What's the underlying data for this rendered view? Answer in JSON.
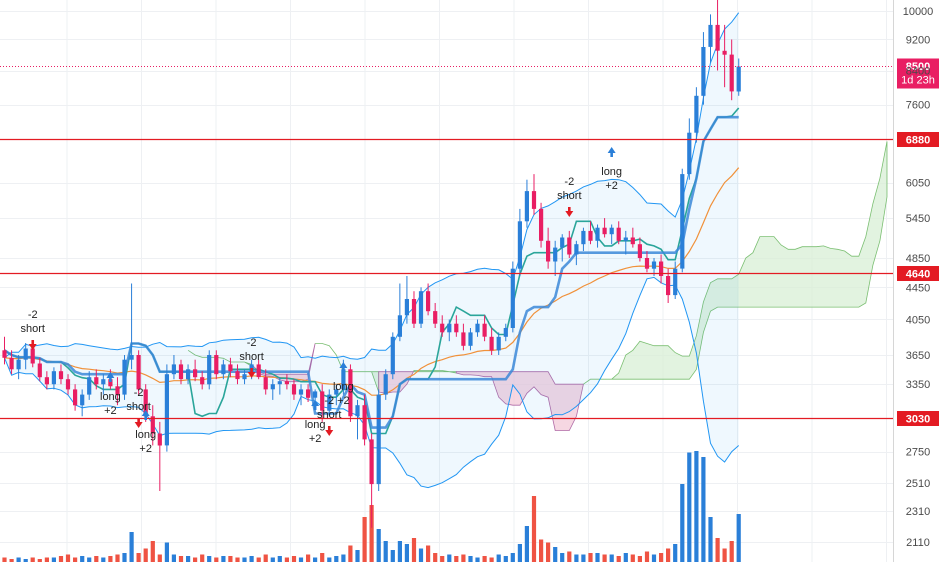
{
  "chart_data": {
    "type": "candlestick",
    "y_ticks": [
      "10000",
      "9200",
      "8400",
      "7600",
      "6880",
      "6050",
      "5450",
      "4850",
      "4640",
      "4450",
      "4050",
      "3650",
      "3350",
      "3030",
      "2750",
      "2510",
      "2310",
      "2110"
    ],
    "y_scale": "log",
    "y_range": [
      2000,
      10600
    ],
    "price_tag": {
      "value": "8500",
      "countdown": "1d 23h",
      "color": "#e91e63"
    },
    "horizontal_levels": [
      {
        "value": 6880,
        "label": "6880",
        "color": "#e31b23"
      },
      {
        "value": 4640,
        "label": "4640",
        "color": "#e31b23"
      },
      {
        "value": 3030,
        "label": "3030",
        "color": "#e31b23"
      }
    ],
    "colors": {
      "up": "#2a7fd8",
      "down": "#e91e63",
      "volume_up": "#2a7fd8",
      "volume_down": "#ef5343",
      "basis": "#3b88d8",
      "teal": "#2aa59a",
      "orange": "#f0913a",
      "bb_band": "#2196f3",
      "cloud_bear": "#f3c9d8",
      "cloud_bull": "#d8efd6"
    },
    "signals": [
      {
        "lines": [
          "-2",
          "short"
        ]
      },
      {
        "lines": [
          "long",
          "+2"
        ]
      },
      {
        "lines": [
          "-2",
          "short"
        ]
      },
      {
        "lines": [
          "long",
          "+2"
        ]
      },
      {
        "lines": [
          "-2",
          "short"
        ]
      },
      {
        "lines": [
          "long",
          "+2"
        ]
      },
      {
        "lines": [
          "-2",
          "short"
        ]
      },
      {
        "lines": [
          "long",
          "+2"
        ]
      },
      {
        "lines": [
          "-2",
          "short"
        ]
      },
      {
        "lines": [
          "long",
          "+2"
        ]
      }
    ],
    "grid": true,
    "candles": [
      [
        3700,
        3850,
        3550,
        3620
      ],
      [
        3620,
        3700,
        3450,
        3500
      ],
      [
        3500,
        3650,
        3400,
        3600
      ],
      [
        3600,
        3780,
        3500,
        3720
      ],
      [
        3720,
        3760,
        3520,
        3560
      ],
      [
        3560,
        3620,
        3380,
        3420
      ],
      [
        3420,
        3480,
        3300,
        3350
      ],
      [
        3350,
        3520,
        3300,
        3480
      ],
      [
        3480,
        3550,
        3350,
        3400
      ],
      [
        3400,
        3450,
        3250,
        3300
      ],
      [
        3300,
        3350,
        3100,
        3150
      ],
      [
        3150,
        3300,
        3050,
        3250
      ],
      [
        3250,
        3480,
        3200,
        3420
      ],
      [
        3420,
        3500,
        3300,
        3350
      ],
      [
        3350,
        3450,
        3250,
        3400
      ],
      [
        3400,
        3500,
        3300,
        3330
      ],
      [
        3330,
        3420,
        3150,
        3250
      ],
      [
        3250,
        3650,
        3200,
        3600
      ],
      [
        3600,
        4500,
        3500,
        3650
      ],
      [
        3650,
        3700,
        3250,
        3300
      ],
      [
        3300,
        3350,
        3000,
        3050
      ],
      [
        3050,
        3150,
        2800,
        2900
      ],
      [
        2900,
        3000,
        2450,
        2800
      ],
      [
        2800,
        3550,
        2750,
        3450
      ],
      [
        3450,
        3650,
        3400,
        3550
      ],
      [
        3550,
        3600,
        3350,
        3400
      ],
      [
        3400,
        3550,
        3350,
        3500
      ],
      [
        3500,
        3600,
        3380,
        3420
      ],
      [
        3420,
        3480,
        3300,
        3350
      ],
      [
        3350,
        3700,
        3300,
        3650
      ],
      [
        3650,
        3700,
        3400,
        3450
      ],
      [
        3450,
        3600,
        3400,
        3550
      ],
      [
        3550,
        3620,
        3420,
        3480
      ],
      [
        3480,
        3550,
        3350,
        3400
      ],
      [
        3400,
        3500,
        3350,
        3450
      ],
      [
        3450,
        3600,
        3400,
        3550
      ],
      [
        3550,
        3600,
        3400,
        3420
      ],
      [
        3420,
        3500,
        3250,
        3300
      ],
      [
        3300,
        3400,
        3200,
        3350
      ],
      [
        3350,
        3420,
        3250,
        3380
      ],
      [
        3380,
        3450,
        3300,
        3350
      ],
      [
        3350,
        3400,
        3200,
        3250
      ],
      [
        3250,
        3350,
        3150,
        3300
      ],
      [
        3300,
        3350,
        3180,
        3220
      ],
      [
        3220,
        3300,
        3150,
        3280
      ],
      [
        3280,
        3350,
        3000,
        3100
      ],
      [
        3100,
        3300,
        3050,
        3250
      ],
      [
        3250,
        3350,
        3150,
        3300
      ],
      [
        3300,
        3600,
        3250,
        3500
      ],
      [
        3500,
        3550,
        3000,
        3050
      ],
      [
        3050,
        3200,
        2850,
        3150
      ],
      [
        3150,
        3250,
        2800,
        2850
      ],
      [
        2850,
        2900,
        2200,
        2500
      ],
      [
        2500,
        3300,
        2450,
        3250
      ],
      [
        3250,
        3500,
        3200,
        3450
      ],
      [
        3450,
        3900,
        3400,
        3850
      ],
      [
        3850,
        4500,
        3800,
        4100
      ],
      [
        4100,
        4600,
        4000,
        4300
      ],
      [
        4300,
        4400,
        3950,
        4000
      ],
      [
        4000,
        4450,
        3950,
        4400
      ],
      [
        4400,
        4500,
        4100,
        4150
      ],
      [
        4150,
        4250,
        3950,
        4000
      ],
      [
        4000,
        4100,
        3850,
        3900
      ],
      [
        3900,
        4050,
        3800,
        4000
      ],
      [
        4000,
        4100,
        3850,
        3900
      ],
      [
        3900,
        4000,
        3700,
        3750
      ],
      [
        3750,
        3950,
        3700,
        3900
      ],
      [
        3900,
        4050,
        3850,
        4000
      ],
      [
        4000,
        4100,
        3800,
        3850
      ],
      [
        3850,
        3950,
        3650,
        3700
      ],
      [
        3700,
        3900,
        3650,
        3850
      ],
      [
        3850,
        4000,
        3800,
        3950
      ],
      [
        3950,
        4800,
        3900,
        4700
      ],
      [
        4700,
        5600,
        4600,
        5400
      ],
      [
        5400,
        6100,
        5300,
        5900
      ],
      [
        5900,
        6200,
        5500,
        5600
      ],
      [
        5600,
        5700,
        5000,
        5100
      ],
      [
        5100,
        5300,
        4700,
        4800
      ],
      [
        4800,
        5100,
        4600,
        5000
      ],
      [
        5000,
        5200,
        4800,
        5150
      ],
      [
        5150,
        5250,
        4850,
        4900
      ],
      [
        4900,
        5100,
        4750,
        5050
      ],
      [
        5050,
        5300,
        4950,
        5250
      ],
      [
        5250,
        5400,
        5050,
        5100
      ],
      [
        5100,
        5350,
        5000,
        5300
      ],
      [
        5300,
        5450,
        5150,
        5200
      ],
      [
        5200,
        5350,
        5050,
        5300
      ],
      [
        5300,
        5400,
        5050,
        5100
      ],
      [
        5100,
        5250,
        4900,
        5150
      ],
      [
        5150,
        5300,
        5000,
        5050
      ],
      [
        5050,
        5150,
        4800,
        4850
      ],
      [
        4850,
        4950,
        4650,
        4700
      ],
      [
        4700,
        4850,
        4600,
        4800
      ],
      [
        4800,
        4900,
        4500,
        4600
      ],
      [
        4600,
        4700,
        4250,
        4350
      ],
      [
        4350,
        4800,
        4300,
        4700
      ],
      [
        4700,
        6300,
        4650,
        6200
      ],
      [
        6200,
        7300,
        6100,
        7000
      ],
      [
        7000,
        8000,
        6800,
        7800
      ],
      [
        7800,
        9400,
        7600,
        9000
      ],
      [
        9000,
        9900,
        8600,
        9600
      ],
      [
        9600,
        10400,
        8400,
        8900
      ],
      [
        8900,
        9600,
        8000,
        8800
      ],
      [
        8800,
        9200,
        7700,
        7900
      ],
      [
        7900,
        8700,
        7800,
        8500
      ]
    ],
    "volumes": [
      0.03,
      0.02,
      0.03,
      0.02,
      0.03,
      0.02,
      0.03,
      0.03,
      0.04,
      0.05,
      0.03,
      0.04,
      0.03,
      0.04,
      0.03,
      0.04,
      0.05,
      0.06,
      0.2,
      0.06,
      0.09,
      0.14,
      0.05,
      0.13,
      0.05,
      0.04,
      0.04,
      0.03,
      0.05,
      0.04,
      0.03,
      0.04,
      0.04,
      0.03,
      0.03,
      0.04,
      0.03,
      0.05,
      0.03,
      0.04,
      0.03,
      0.04,
      0.03,
      0.05,
      0.03,
      0.06,
      0.03,
      0.04,
      0.05,
      0.11,
      0.08,
      0.3,
      0.38,
      0.22,
      0.14,
      0.08,
      0.14,
      0.12,
      0.16,
      0.09,
      0.11,
      0.06,
      0.04,
      0.05,
      0.04,
      0.05,
      0.04,
      0.03,
      0.04,
      0.03,
      0.05,
      0.04,
      0.06,
      0.12,
      0.24,
      0.44,
      0.15,
      0.13,
      0.1,
      0.06,
      0.07,
      0.05,
      0.05,
      0.06,
      0.06,
      0.05,
      0.05,
      0.04,
      0.06,
      0.05,
      0.04,
      0.07,
      0.05,
      0.06,
      0.09,
      0.12,
      0.52,
      0.73,
      0.74,
      0.7,
      0.3,
      0.16,
      0.09,
      0.14,
      0.32
    ]
  }
}
